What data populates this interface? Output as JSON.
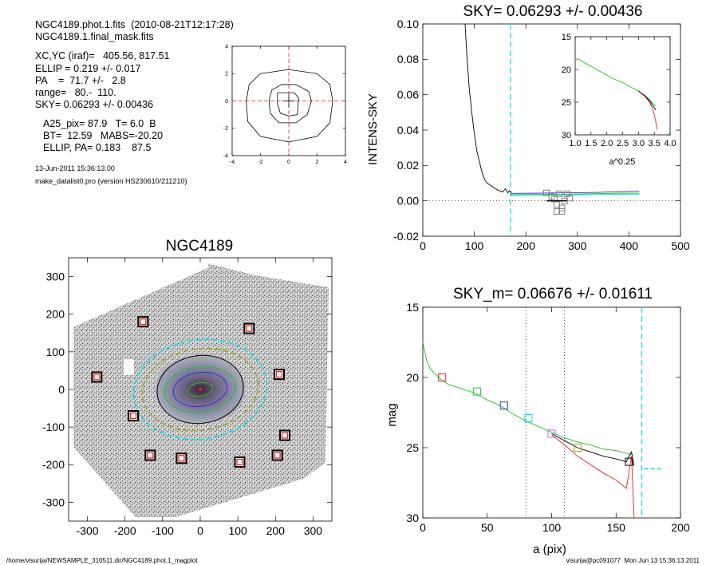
{
  "info": {
    "lines_top": [
      "NGC4189.phot.1.fits  (2010-08-21T12:17:28)",
      "NGC4189.1.final_mask.fits"
    ],
    "lines_mid": [
      "XC,YC (iraf)=   405.56, 817.51",
      "ELLIP = 0.219 +/- 0.017",
      "PA    =  71.7 +/-   2.8",
      "range=   80.-  110.",
      "SKY= 0.06293 +/- 0.00436"
    ],
    "lines_low": [
      "A25_pix= 87.9   T= 6.0  B",
      "BT=  12.59   MABS=-20.20",
      "ELLIP, PA= 0.183    87.5"
    ],
    "date": "13-Jun-2011 15:36:13.00",
    "program": "make_datalist0.pro (version HS230610/211210)"
  },
  "footer": {
    "left": "/home/visurija/NEWSAMPLE_310511.dir/NGC4189.phot.1_magplot",
    "right": "visurija@pc091077  Mon Jun 13 15:36:13 2011"
  },
  "colors": {
    "cyan": "#00e0e8",
    "red": "#e82020",
    "green": "#20c020",
    "blue": "#3030d0",
    "violet": "#b070e0",
    "olive": "#a0a020",
    "black": "#000000"
  },
  "chart_data": [
    {
      "id": "contour_plot",
      "type": "line",
      "title": "",
      "xlim": [
        -4,
        4
      ],
      "ylim": [
        -4,
        4
      ],
      "xticks": [
        -4,
        -2,
        0,
        2,
        4
      ],
      "yticks": [
        -4,
        -2,
        0,
        2,
        4
      ],
      "contours": [
        [
          [
            -3.0,
            0
          ],
          [
            -2.8,
            1.2
          ],
          [
            -2.0,
            2.0
          ],
          [
            0,
            2.3
          ],
          [
            2.0,
            2.0
          ],
          [
            2.9,
            1.2
          ],
          [
            3.1,
            0
          ],
          [
            2.9,
            -1.6
          ],
          [
            2.0,
            -2.6
          ],
          [
            0,
            -3.0
          ],
          [
            -2.0,
            -2.6
          ],
          [
            -2.9,
            -1.5
          ],
          [
            -3.0,
            0
          ]
        ],
        [
          [
            -1.4,
            0
          ],
          [
            -1.2,
            0.8
          ],
          [
            -0.5,
            1.2
          ],
          [
            0.5,
            1.2
          ],
          [
            1.4,
            0.7
          ],
          [
            1.6,
            0
          ],
          [
            1.3,
            -1.0
          ],
          [
            0.5,
            -1.6
          ],
          [
            -0.7,
            -1.6
          ],
          [
            -1.3,
            -0.9
          ],
          [
            -1.4,
            0
          ]
        ],
        [
          [
            -0.8,
            -0.2
          ],
          [
            -0.8,
            0.6
          ],
          [
            0.4,
            0.6
          ],
          [
            0.7,
            0.2
          ],
          [
            0.6,
            -1.0
          ],
          [
            0,
            -1.1
          ],
          [
            -0.6,
            -0.9
          ],
          [
            -0.8,
            -0.2
          ]
        ]
      ],
      "crosshair": [
        0,
        0
      ]
    },
    {
      "id": "sky_profile",
      "type": "line",
      "title": "SKY= 0.06293 +/- 0.00436",
      "xlabel": "",
      "ylabel": "INTENS-SKY",
      "xlim": [
        0,
        500
      ],
      "ylim": [
        -0.02,
        0.1
      ],
      "xticks": [
        0,
        100,
        200,
        300,
        400,
        500
      ],
      "yticks": [
        -0.02,
        0.0,
        0.02,
        0.04,
        0.06,
        0.08,
        0.1
      ],
      "ytick_labels": [
        "-0.02",
        "0.00",
        "0.02",
        "0.04",
        "0.06",
        "0.08",
        "0.10"
      ],
      "vline": 170,
      "series": [
        {
          "color": "black",
          "x": [
            82,
            86,
            90,
            95,
            100,
            105,
            110,
            115,
            120,
            125,
            130,
            135,
            140,
            145,
            150,
            155,
            160,
            165,
            168,
            172
          ],
          "y": [
            0.1,
            0.08,
            0.064,
            0.05,
            0.038,
            0.028,
            0.022,
            0.016,
            0.012,
            0.01,
            0.009,
            0.008,
            0.007,
            0.0062,
            0.0055,
            0.005,
            0.0068,
            0.0045,
            0.0058,
            0.0047
          ]
        },
        {
          "color": "blue",
          "x": [
            170,
            220,
            260,
            300,
            340,
            380,
            420
          ],
          "y": [
            0.0042,
            0.0043,
            0.0045,
            0.0046,
            0.0048,
            0.0052,
            0.0055
          ]
        },
        {
          "color": "green",
          "x": [
            170,
            220,
            260,
            300,
            340,
            380,
            420
          ],
          "y": [
            0.0035,
            0.0036,
            0.0037,
            0.0039,
            0.0041,
            0.0043,
            0.0044
          ]
        },
        {
          "color": "cyan",
          "x": [
            170,
            220,
            260,
            300,
            340,
            380,
            420
          ],
          "y": [
            0.003,
            0.0031,
            0.0032,
            0.0034,
            0.0036,
            0.0037,
            0.0038
          ]
        }
      ],
      "markers": {
        "x": [
          240,
          250,
          255,
          260,
          265,
          270,
          275,
          280,
          285,
          260,
          270
        ],
        "y": [
          0.0045,
          0.0025,
          0.001,
          -0.002,
          0.004,
          -0.004,
          0.0,
          0.004,
          0.0015,
          -0.006,
          -0.006
        ]
      },
      "sky_bar": {
        "x": [
          240,
          280
        ],
        "y": 0.0
      }
    },
    {
      "id": "inset",
      "type": "line",
      "xlabel": "a^0.25",
      "xlim": [
        1.0,
        4.0
      ],
      "ylim": [
        30,
        15
      ],
      "xticks": [
        1.0,
        1.5,
        2.0,
        2.5,
        3.0,
        3.5,
        4.0
      ],
      "xtick_labels": [
        "1.0",
        "1.5",
        "2.0",
        "2.5",
        "3.0",
        "3.5",
        "4.0"
      ],
      "yticks": [
        15,
        20,
        25,
        30
      ],
      "series": [
        {
          "color": "green",
          "x": [
            1.0,
            1.1,
            1.3,
            1.6,
            1.9,
            2.2,
            2.5,
            2.8,
            3.0,
            3.2,
            3.35,
            3.45,
            3.55
          ],
          "y": [
            18.6,
            18.4,
            19.0,
            19.8,
            20.6,
            21.4,
            22.0,
            22.8,
            23.3,
            24.0,
            24.6,
            25.2,
            25.6
          ]
        },
        {
          "color": "red",
          "x": [
            3.0,
            3.2,
            3.35,
            3.45,
            3.5,
            3.55,
            3.58
          ],
          "y": [
            23.3,
            24.1,
            25.0,
            26.0,
            27.0,
            28.0,
            29.2
          ]
        },
        {
          "color": "black",
          "x": [
            3.0,
            3.2,
            3.35,
            3.45,
            3.55
          ],
          "y": [
            23.3,
            24.0,
            24.8,
            25.5,
            26.2
          ]
        }
      ]
    },
    {
      "id": "image",
      "type": "scatter",
      "title": "NGC4189",
      "xlim": [
        -350,
        350
      ],
      "ylim": [
        -350,
        350
      ],
      "xticks": [
        -300,
        -200,
        -100,
        0,
        100,
        200,
        300
      ],
      "yticks": [
        -300,
        -200,
        -100,
        0,
        100,
        200,
        300
      ],
      "markers": {
        "x": [
          -152,
          130,
          -275,
          210,
          -178,
          225,
          -133,
          -50,
          105,
          205
        ],
        "y": [
          180,
          162,
          33,
          40,
          -70,
          -122,
          -175,
          -183,
          -193,
          -175
        ]
      },
      "ellipses": [
        {
          "color": "cyan",
          "a": 178,
          "b": 132,
          "dashed": true
        },
        {
          "color": "olive",
          "a": 155,
          "b": 108,
          "dashed": true
        },
        {
          "color": "black",
          "a": 115,
          "b": 90
        },
        {
          "color": "green",
          "a": 95,
          "b": 60
        },
        {
          "color": "blue",
          "a": 72,
          "b": 45
        },
        {
          "color": "green",
          "a": 33,
          "b": 18
        }
      ]
    },
    {
      "id": "mag_profile",
      "type": "line",
      "title": "SKY_m=  0.06676 +/- 0.01611",
      "xlabel": "a (pix)",
      "ylabel": "mag",
      "xlim": [
        0,
        200
      ],
      "ylim": [
        30,
        15
      ],
      "xticks": [
        0,
        50,
        100,
        150,
        200
      ],
      "yticks": [
        15,
        20,
        25,
        30
      ],
      "dotted_vlines": [
        80,
        110
      ],
      "vline": 170,
      "sky_mark": {
        "x": [
          172,
          185
        ],
        "y": 26.5
      },
      "series": [
        {
          "color": "green",
          "x": [
            0,
            3,
            6,
            10,
            15,
            20,
            30,
            40,
            50,
            60,
            70,
            80,
            90,
            100,
            110,
            120,
            130,
            140,
            150,
            158,
            162
          ],
          "y": [
            17.5,
            18.8,
            19.4,
            19.8,
            20.2,
            20.5,
            20.8,
            21.1,
            21.6,
            22.0,
            22.6,
            23.1,
            23.5,
            23.9,
            24.3,
            24.6,
            24.8,
            25.1,
            25.2,
            25.4,
            25.5
          ]
        },
        {
          "color": "black",
          "x": [
            100,
            110,
            120,
            130,
            140,
            150,
            158,
            162,
            164
          ],
          "y": [
            24.0,
            24.5,
            25.0,
            25.3,
            25.6,
            25.8,
            26.0,
            25.3,
            26.3
          ]
        },
        {
          "color": "red",
          "x": [
            100,
            110,
            120,
            130,
            140,
            150,
            158,
            162,
            164
          ],
          "y": [
            24.1,
            24.8,
            25.6,
            26.2,
            26.8,
            27.3,
            27.9,
            25.6,
            30.0
          ]
        }
      ],
      "markers": [
        {
          "x": 15,
          "y": 20.0,
          "color": "red"
        },
        {
          "x": 42,
          "y": 21.0,
          "color": "green"
        },
        {
          "x": 63,
          "y": 22.0,
          "color": "blue"
        },
        {
          "x": 82,
          "y": 22.9,
          "color": "cyan"
        },
        {
          "x": 100,
          "y": 24.0,
          "color": "violet"
        },
        {
          "x": 120,
          "y": 25.0,
          "color": "olive"
        },
        {
          "x": 160,
          "y": 26.0,
          "color": "black"
        }
      ]
    }
  ]
}
